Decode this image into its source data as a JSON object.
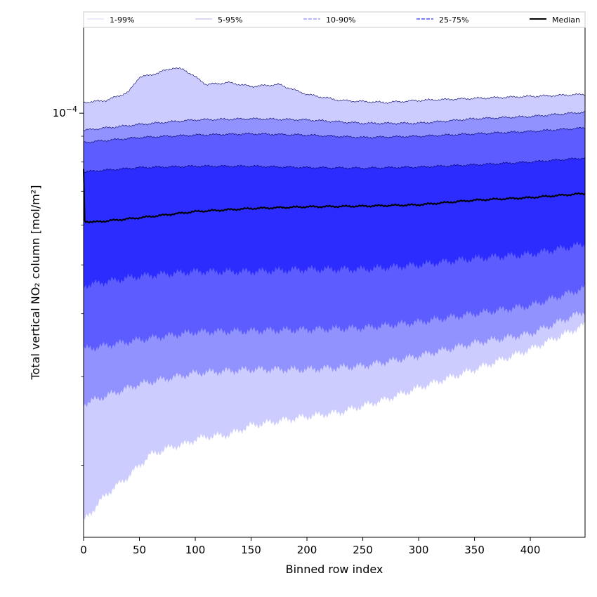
{
  "chart_data": {
    "type": "area",
    "xlabel": "Binned row index",
    "ylabel": "Total vertical NO₂ column [mol/m²]",
    "y_scale": "log",
    "x_ticks": [
      0,
      50,
      100,
      150,
      200,
      250,
      300,
      350,
      400
    ],
    "x_tick_labels": [
      "0",
      "50",
      "100",
      "150",
      "200",
      "250",
      "300",
      "350",
      "400"
    ],
    "y_tick_labels": [
      {
        "value": 0.0001,
        "base": "10",
        "exponent": "−4"
      }
    ],
    "xlim": [
      0,
      449
    ],
    "ylim": [
      1.44e-05,
      0.000148
    ],
    "legend": {
      "placement": "top",
      "entries": [
        "1-99%",
        "5-95%",
        "10-90%",
        "25-75%",
        "Median"
      ]
    },
    "bands": [
      {
        "name": "1-99%",
        "color": "#ccccff",
        "x": [
          0,
          20,
          40,
          50,
          60,
          80,
          90,
          100,
          110,
          130,
          150,
          175,
          200,
          230,
          270,
          300,
          350,
          400,
          449
        ],
        "upper": [
          0.000105,
          0.000106,
          0.00011,
          0.000118,
          0.000119,
          0.000123,
          0.000122,
          0.000118,
          0.000114,
          0.000115,
          0.000113,
          0.000114,
          0.000109,
          0.000106,
          0.000105,
          0.000106,
          0.000107,
          0.000108,
          0.000109
        ],
        "lower": [
          1.55e-05,
          1.75e-05,
          1.9e-05,
          2e-05,
          2.1e-05,
          2.18e-05,
          2.2e-05,
          2.25e-05,
          2.28e-05,
          2.3e-05,
          2.4e-05,
          2.45e-05,
          2.5e-05,
          2.55e-05,
          2.7e-05,
          2.85e-05,
          3.1e-05,
          3.4e-05,
          3.8e-05
        ]
      },
      {
        "name": "5-95%",
        "color": "#9292ff",
        "x": [
          0,
          50,
          100,
          150,
          200,
          250,
          300,
          350,
          400,
          449
        ],
        "upper": [
          9.25e-05,
          9.5e-05,
          9.7e-05,
          9.75e-05,
          9.7e-05,
          9.55e-05,
          9.55e-05,
          9.75e-05,
          9.85e-05,
          0.0001005
        ],
        "lower": [
          2.65e-05,
          2.9e-05,
          3.05e-05,
          3.1e-05,
          3.1e-05,
          3.15e-05,
          3.3e-05,
          3.5e-05,
          3.65e-05,
          4.05e-05
        ]
      },
      {
        "name": "10-90%",
        "color": "#5d5dff",
        "x": [
          0,
          50,
          100,
          150,
          200,
          250,
          300,
          350,
          400,
          449
        ],
        "upper": [
          8.75e-05,
          8.95e-05,
          9.05e-05,
          9.1e-05,
          9.05e-05,
          8.95e-05,
          9e-05,
          9.1e-05,
          9.2e-05,
          9.35e-05
        ],
        "lower": [
          3.4e-05,
          3.55e-05,
          3.68e-05,
          3.7e-05,
          3.72e-05,
          3.75e-05,
          3.85e-05,
          4e-05,
          4.15e-05,
          4.5e-05
        ]
      },
      {
        "name": "25-75%",
        "color": "#2c2cff",
        "x": [
          0,
          50,
          100,
          150,
          200,
          250,
          300,
          350,
          400,
          449
        ],
        "upper": [
          7.65e-05,
          7.8e-05,
          7.85e-05,
          7.85e-05,
          7.8e-05,
          7.78e-05,
          7.82e-05,
          7.9e-05,
          8e-05,
          8.15e-05
        ],
        "lower": [
          4.55e-05,
          4.75e-05,
          4.85e-05,
          4.85e-05,
          4.9e-05,
          4.9e-05,
          5e-05,
          5.15e-05,
          5.25e-05,
          5.5e-05
        ]
      }
    ],
    "median": {
      "name": "Median",
      "color": "#000000",
      "x": [
        0,
        1,
        2,
        10,
        50,
        100,
        150,
        200,
        250,
        300,
        350,
        400,
        449
      ],
      "y": [
        7.75e-05,
        6.12e-05,
        6.1e-05,
        6.08e-05,
        6.2e-05,
        6.38e-05,
        6.47e-05,
        6.52e-05,
        6.54e-05,
        6.58e-05,
        6.72e-05,
        6.8e-05,
        6.93e-05
      ]
    }
  }
}
